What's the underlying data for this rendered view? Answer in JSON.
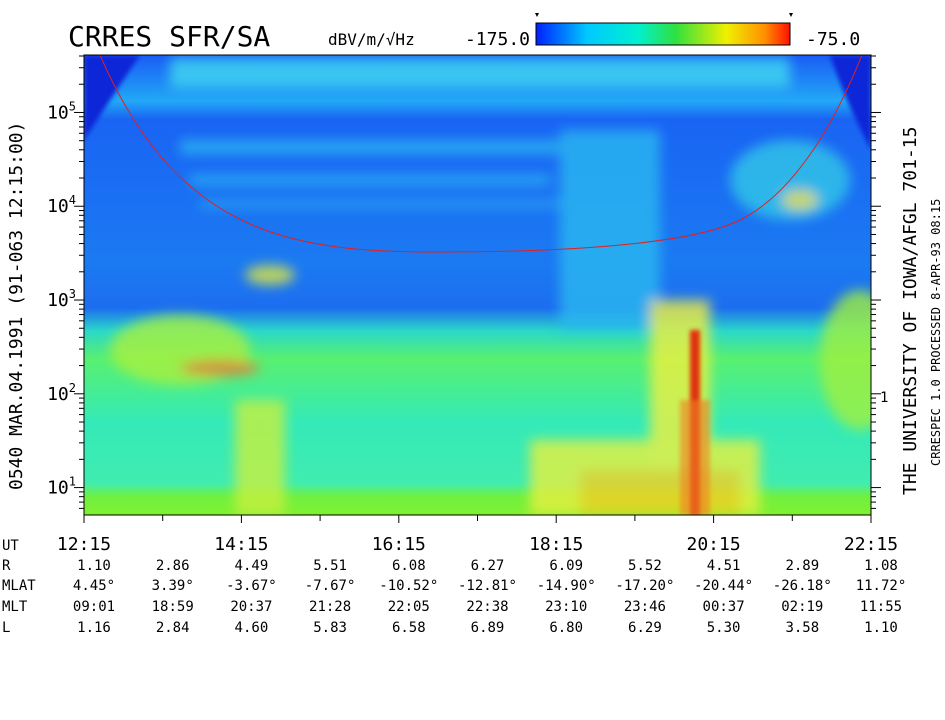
{
  "chart_data": {
    "type": "spectrogram",
    "title": "CRRES SFR/SA",
    "colorbar_label": "dBV/m/√Hz",
    "colorbar_lim": [
      {
        "value": -175,
        "label": "-175.0"
      },
      {
        "value": -75,
        "label": "-75.0"
      }
    ],
    "y_scale": "log",
    "ylim": [
      5.1,
      410000
    ],
    "yticks": [
      {
        "value": 10,
        "label": "10",
        "exponent": "1"
      },
      {
        "value": 100,
        "label": "10",
        "exponent": "2"
      },
      {
        "value": 1000,
        "label": "10",
        "exponent": "3"
      },
      {
        "value": 10000,
        "label": "10",
        "exponent": "4"
      },
      {
        "value": 100000,
        "label": "10",
        "exponent": "5"
      }
    ],
    "xlim": [
      12.25,
      22.25
    ],
    "xticks": [
      {
        "value": 12.25,
        "label": "12:15"
      },
      {
        "value": 14.25,
        "label": "14:15"
      },
      {
        "value": 16.25,
        "label": "16:15"
      },
      {
        "value": 18.25,
        "label": "18:15"
      },
      {
        "value": 20.25,
        "label": "20:15"
      },
      {
        "value": 22.25,
        "label": "22:15"
      }
    ],
    "xminorticks": [
      13.25,
      15.25,
      17.25,
      19.25,
      21.25
    ],
    "x_label": "UT",
    "left_text": "0540  MAR.04.1991  (91-063 12:15:00)",
    "right_text": "THE UNIVERSITY OF IOWA/AFGL 701-15",
    "right_small_text": "CRRESPEC 1.0   PROCESSED  8-APR-93  08:15",
    "right_marker": "1",
    "ephemeris": [
      {
        "label": "R",
        "values": [
          "1.10",
          "2.86",
          "4.49",
          "5.51",
          "6.08",
          "6.27",
          "6.09",
          "5.52",
          "4.51",
          "2.89",
          "1.08"
        ]
      },
      {
        "label": "MLAT",
        "values": [
          "4.45°",
          "3.39°",
          "-3.67°",
          "-7.67°",
          "-10.52°",
          "-12.81°",
          "-14.90°",
          "-17.20°",
          "-20.44°",
          "-26.18°",
          "11.72°"
        ]
      },
      {
        "label": "MLT",
        "values": [
          "09:01",
          "18:59",
          "20:37",
          "21:28",
          "22:05",
          "22:38",
          "23:10",
          "23:46",
          "00:37",
          "02:19",
          "11:55"
        ]
      },
      {
        "label": "L",
        "values": [
          "1.16",
          "2.84",
          "4.60",
          "5.83",
          "6.58",
          "6.89",
          "6.80",
          "6.29",
          "5.30",
          "3.58",
          "1.10"
        ]
      }
    ]
  }
}
